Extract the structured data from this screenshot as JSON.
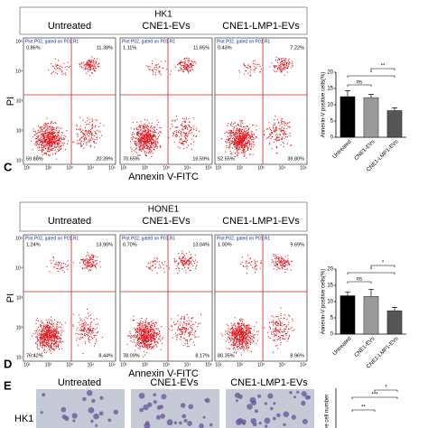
{
  "flow_axis_ticks": [
    "10¹",
    "10²",
    "10³",
    "10⁴",
    "10⁵"
  ],
  "panels": [
    {
      "label": "C",
      "cell_line": "HK1",
      "groups": [
        "Untreated",
        "CNE1-EVs",
        "CNE1-LMP1-EVs"
      ],
      "x_axis": "Annexin V-FITC",
      "y_axis": "PI",
      "plots": [
        {
          "gate": "Plot P02, gated on P01.R1",
          "quadrants": [
            "0.86%",
            "11.38%",
            "59.88%",
            "20.39%"
          ]
        },
        {
          "gate": "Plot P02, gated on P01.R1",
          "quadrants": [
            "1.11%",
            "11.65%",
            "70.65%",
            "16.59%"
          ]
        },
        {
          "gate": "Plot P02, gated on P01.R1",
          "quadrants": [
            "0.43%",
            "7.22%",
            "52.55%",
            "39.80%"
          ]
        }
      ],
      "bar_chart": {
        "type": "bar",
        "y_label": "Annexin-V positive cells(%)",
        "categories": [
          "Untreated",
          "CNE1-EVs",
          "CNE1-LMP1-EVs"
        ],
        "values": [
          12.5,
          12.2,
          8.2
        ],
        "errors": [
          1.8,
          1.0,
          0.8
        ],
        "colors": [
          "#000000",
          "#9a9a9a",
          "#555555"
        ],
        "ylim": [
          0,
          20
        ],
        "yticks": [
          0,
          5,
          10,
          15,
          20
        ],
        "significance": [
          "ns",
          "*",
          "**"
        ]
      }
    },
    {
      "label": "D",
      "cell_line": "HONE1",
      "groups": [
        "Untreated",
        "CNE1-EVs",
        "CNE1-LMP1-EVs"
      ],
      "x_axis": "Annexin V-FITC",
      "y_axis": "PI",
      "plots": [
        {
          "gate": "Plot P02, gated on P01.R1",
          "quadrants": [
            "1.24%",
            "13.90%",
            "76.42%",
            "8.44%"
          ]
        },
        {
          "gate": "Plot P02, gated on P01.R1",
          "quadrants": [
            "0.70%",
            "13.04%",
            "78.09%",
            "8.17%"
          ]
        },
        {
          "gate": "Plot P02, gated on P01.R1",
          "quadrants": [
            "1.00%",
            "9.69%",
            "80.35%",
            "8.96%"
          ]
        }
      ],
      "bar_chart": {
        "type": "bar",
        "y_label": "Annexin-V positive cells(%)",
        "categories": [
          "Untreated",
          "CNE1-EVs",
          "CNE1-LMP1-EVs"
        ],
        "values": [
          11.8,
          11.6,
          7.2
        ],
        "errors": [
          1.2,
          2.2,
          1.0
        ],
        "colors": [
          "#000000",
          "#9a9a9a",
          "#555555"
        ],
        "ylim": [
          0,
          20
        ],
        "yticks": [
          0,
          5,
          10,
          15,
          20
        ],
        "significance": [
          "ns",
          "*",
          "*"
        ]
      }
    },
    {
      "label": "E",
      "groups": [
        "Untreated",
        "CNE1-EVs",
        "CNE1-LMP1-EVs"
      ],
      "row_label": "HK1",
      "y_label": "lative cell number",
      "significance": [
        "**",
        "***",
        "*"
      ]
    }
  ]
}
